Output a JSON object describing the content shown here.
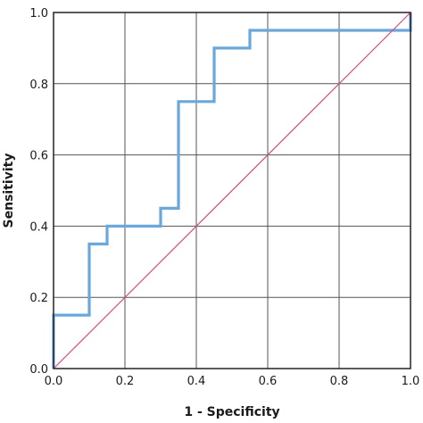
{
  "chart_data": {
    "type": "line",
    "title": "",
    "xlabel": "1 - Specificity",
    "ylabel": "Sensitivity",
    "xlim": [
      0,
      1
    ],
    "ylim": [
      0,
      1
    ],
    "x_ticks": [
      "0.0",
      "0.2",
      "0.4",
      "0.6",
      "0.8",
      "1.0"
    ],
    "y_ticks": [
      "0.0",
      "0.2",
      "0.4",
      "0.6",
      "0.8",
      "1.0"
    ],
    "grid": true,
    "legend": "none",
    "series": [
      {
        "color": "#6aa8dc",
        "style": "step",
        "x": [
          0,
          0,
          0.1,
          0.1,
          0.15,
          0.15,
          0.3,
          0.3,
          0.35,
          0.35,
          0.45,
          0.45,
          0.55,
          0.55,
          1.0,
          1.0
        ],
        "y": [
          0,
          0.15,
          0.15,
          0.35,
          0.35,
          0.4,
          0.4,
          0.45,
          0.45,
          0.75,
          0.75,
          0.9,
          0.9,
          0.95,
          0.95,
          1.0
        ]
      },
      {
        "color": "#e0467c",
        "style": "diagonal",
        "x": [
          0,
          1
        ],
        "y": [
          0,
          1
        ]
      }
    ]
  }
}
